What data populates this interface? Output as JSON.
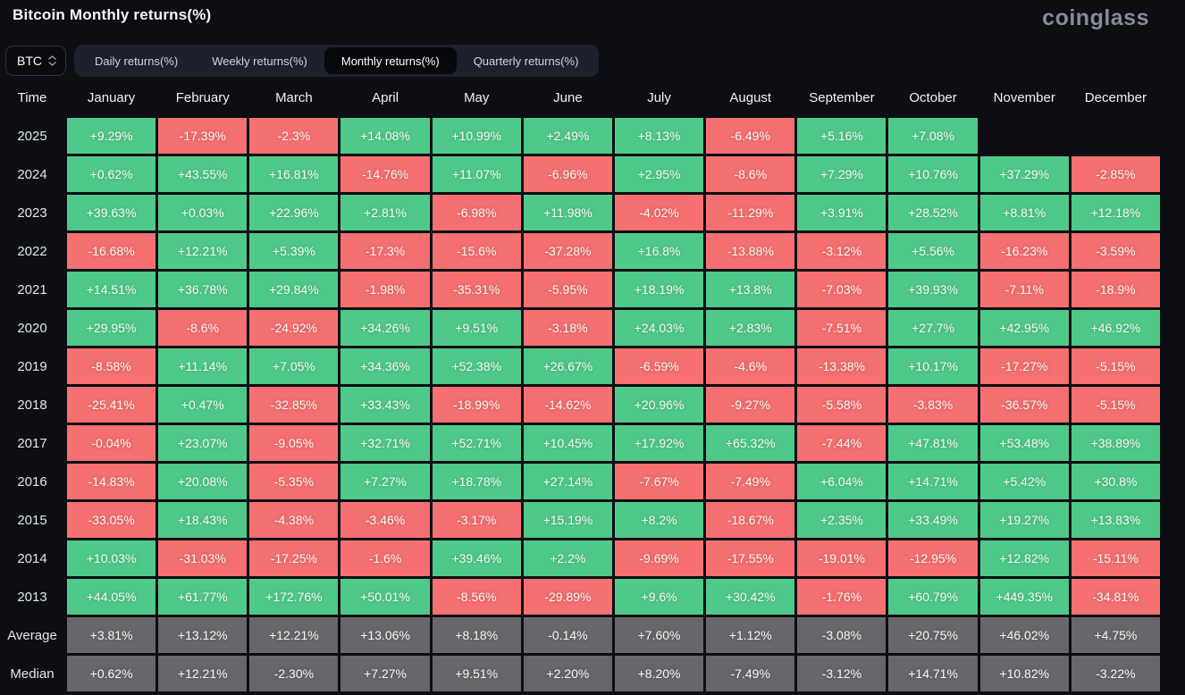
{
  "header": {
    "title": "Bitcoin Monthly returns(%)",
    "logo": "coinglass"
  },
  "controls": {
    "symbol_selector": {
      "label": "BTC"
    },
    "tabs": [
      {
        "label": "Daily returns(%)",
        "active": false
      },
      {
        "label": "Weekly returns(%)",
        "active": false
      },
      {
        "label": "Monthly returns(%)",
        "active": true
      },
      {
        "label": "Quarterly returns(%)",
        "active": false
      }
    ]
  },
  "colors": {
    "background": "#0c0e13",
    "positive": "#4fc98a",
    "negative": "#f57070",
    "summary": "#66676c",
    "tabbar": "#1d212b",
    "tab_active": "#07080c",
    "logo_text": "#858c98"
  },
  "chart_data": {
    "type": "heatmap",
    "title": "Bitcoin Monthly returns(%)",
    "row_header": "Time",
    "columns": [
      "January",
      "February",
      "March",
      "April",
      "May",
      "June",
      "July",
      "August",
      "September",
      "October",
      "November",
      "December"
    ],
    "rows": [
      {
        "label": "2025",
        "kind": "year",
        "values": [
          "+9.29%",
          "-17.39%",
          "-2.3%",
          "+14.08%",
          "+10.99%",
          "+2.49%",
          "+8.13%",
          "-6.49%",
          "+5.16%",
          "+7.08%",
          null,
          null
        ]
      },
      {
        "label": "2024",
        "kind": "year",
        "values": [
          "+0.62%",
          "+43.55%",
          "+16.81%",
          "-14.76%",
          "+11.07%",
          "-6.96%",
          "+2.95%",
          "-8.6%",
          "+7.29%",
          "+10.76%",
          "+37.29%",
          "-2.85%"
        ]
      },
      {
        "label": "2023",
        "kind": "year",
        "values": [
          "+39.63%",
          "+0.03%",
          "+22.96%",
          "+2.81%",
          "-6.98%",
          "+11.98%",
          "-4.02%",
          "-11.29%",
          "+3.91%",
          "+28.52%",
          "+8.81%",
          "+12.18%"
        ]
      },
      {
        "label": "2022",
        "kind": "year",
        "values": [
          "-16.68%",
          "+12.21%",
          "+5.39%",
          "-17.3%",
          "-15.6%",
          "-37.28%",
          "+16.8%",
          "-13.88%",
          "-3.12%",
          "+5.56%",
          "-16.23%",
          "-3.59%"
        ]
      },
      {
        "label": "2021",
        "kind": "year",
        "values": [
          "+14.51%",
          "+36.78%",
          "+29.84%",
          "-1.98%",
          "-35.31%",
          "-5.95%",
          "+18.19%",
          "+13.8%",
          "-7.03%",
          "+39.93%",
          "-7.11%",
          "-18.9%"
        ]
      },
      {
        "label": "2020",
        "kind": "year",
        "values": [
          "+29.95%",
          "-8.6%",
          "-24.92%",
          "+34.26%",
          "+9.51%",
          "-3.18%",
          "+24.03%",
          "+2.83%",
          "-7.51%",
          "+27.7%",
          "+42.95%",
          "+46.92%"
        ]
      },
      {
        "label": "2019",
        "kind": "year",
        "values": [
          "-8.58%",
          "+11.14%",
          "+7.05%",
          "+34.36%",
          "+52.38%",
          "+26.67%",
          "-6.59%",
          "-4.6%",
          "-13.38%",
          "+10.17%",
          "-17.27%",
          "-5.15%"
        ]
      },
      {
        "label": "2018",
        "kind": "year",
        "values": [
          "-25.41%",
          "+0.47%",
          "-32.85%",
          "+33.43%",
          "-18.99%",
          "-14.62%",
          "+20.96%",
          "-9.27%",
          "-5.58%",
          "-3.83%",
          "-36.57%",
          "-5.15%"
        ]
      },
      {
        "label": "2017",
        "kind": "year",
        "values": [
          "-0.04%",
          "+23.07%",
          "-9.05%",
          "+32.71%",
          "+52.71%",
          "+10.45%",
          "+17.92%",
          "+65.32%",
          "-7.44%",
          "+47.81%",
          "+53.48%",
          "+38.89%"
        ]
      },
      {
        "label": "2016",
        "kind": "year",
        "values": [
          "-14.83%",
          "+20.08%",
          "-5.35%",
          "+7.27%",
          "+18.78%",
          "+27.14%",
          "-7.67%",
          "-7.49%",
          "+6.04%",
          "+14.71%",
          "+5.42%",
          "+30.8%"
        ]
      },
      {
        "label": "2015",
        "kind": "year",
        "values": [
          "-33.05%",
          "+18.43%",
          "-4.38%",
          "-3.46%",
          "-3.17%",
          "+15.19%",
          "+8.2%",
          "-18.67%",
          "+2.35%",
          "+33.49%",
          "+19.27%",
          "+13.83%"
        ]
      },
      {
        "label": "2014",
        "kind": "year",
        "values": [
          "+10.03%",
          "-31.03%",
          "-17.25%",
          "-1.6%",
          "+39.46%",
          "+2.2%",
          "-9.69%",
          "-17.55%",
          "-19.01%",
          "-12.95%",
          "+12.82%",
          "-15.11%"
        ]
      },
      {
        "label": "2013",
        "kind": "year",
        "values": [
          "+44.05%",
          "+61.77%",
          "+172.76%",
          "+50.01%",
          "-8.56%",
          "-29.89%",
          "+9.6%",
          "+30.42%",
          "-1.76%",
          "+60.79%",
          "+449.35%",
          "-34.81%"
        ]
      },
      {
        "label": "Average",
        "kind": "summary",
        "values": [
          "+3.81%",
          "+13.12%",
          "+12.21%",
          "+13.06%",
          "+8.18%",
          "-0.14%",
          "+7.60%",
          "+1.12%",
          "-3.08%",
          "+20.75%",
          "+46.02%",
          "+4.75%"
        ]
      },
      {
        "label": "Median",
        "kind": "summary",
        "values": [
          "+0.62%",
          "+12.21%",
          "-2.30%",
          "+7.27%",
          "+9.51%",
          "+2.20%",
          "+8.20%",
          "-7.49%",
          "-3.12%",
          "+14.71%",
          "+10.82%",
          "-3.22%"
        ]
      }
    ]
  }
}
